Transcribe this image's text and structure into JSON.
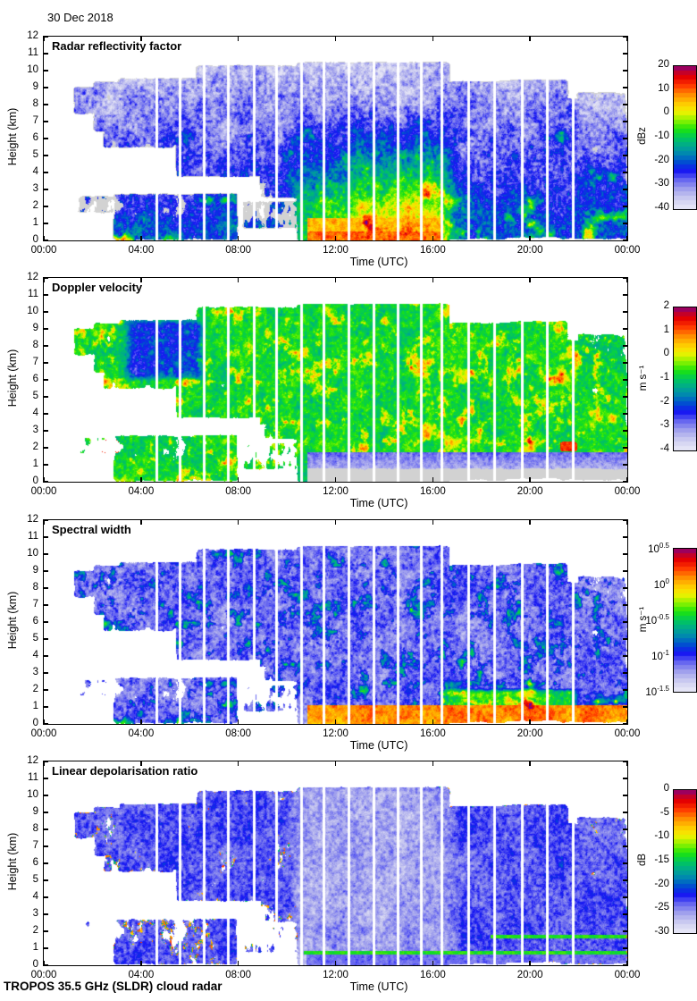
{
  "page": {
    "date": "30 Dec 2018",
    "footer": "TROPOS 35.5 GHz (SLDR) cloud radar",
    "background": "#ffffff"
  },
  "chart_data": {
    "type": "heatmap",
    "description": "Four time-height radar quicklook panels for one day, 00:00-00:00 UTC, 0-12 km height",
    "x_axis": {
      "label": "Time (UTC)",
      "range_hours": [
        0,
        24
      ],
      "ticks": [
        {
          "hour": 0,
          "label": "00:00"
        },
        {
          "hour": 4,
          "label": "04:00"
        },
        {
          "hour": 8,
          "label": "08:00"
        },
        {
          "hour": 12,
          "label": "12:00"
        },
        {
          "hour": 16,
          "label": "16:00"
        },
        {
          "hour": 20,
          "label": "20:00"
        },
        {
          "hour": 24,
          "label": "00:00"
        }
      ]
    },
    "y_axis": {
      "label": "Height (km)",
      "range_km": [
        0,
        12
      ],
      "ticks": [
        0,
        1,
        2,
        3,
        4,
        5,
        6,
        7,
        8,
        9,
        10,
        11,
        12
      ]
    },
    "colormap": {
      "levels": 32,
      "clutter_gray": "#d2d2d2",
      "stops": [
        [
          0.0,
          "#eaeaf8"
        ],
        [
          0.06,
          "#d3d3f2"
        ],
        [
          0.13,
          "#a9a9ec"
        ],
        [
          0.2,
          "#6b6bf0"
        ],
        [
          0.27,
          "#1414f2"
        ],
        [
          0.33,
          "#0050d0"
        ],
        [
          0.38,
          "#0082b4"
        ],
        [
          0.44,
          "#00a890"
        ],
        [
          0.5,
          "#00c85a"
        ],
        [
          0.56,
          "#1ee40c"
        ],
        [
          0.62,
          "#8cf200"
        ],
        [
          0.68,
          "#f2f200"
        ],
        [
          0.74,
          "#ffc800"
        ],
        [
          0.8,
          "#ff8c00"
        ],
        [
          0.86,
          "#ff3c00"
        ],
        [
          0.92,
          "#e60000"
        ],
        [
          0.97,
          "#b4003c"
        ],
        [
          1.0,
          "#820082"
        ]
      ]
    },
    "panels": [
      {
        "id": "reflectivity",
        "title": "Radar reflectivity factor",
        "colorbar": {
          "label": "dBz",
          "min": -40,
          "max": 20,
          "ticks": [
            {
              "v": 20,
              "label": "20"
            },
            {
              "v": 10,
              "label": "10"
            },
            {
              "v": 0,
              "label": "0"
            },
            {
              "v": -10,
              "label": "-10"
            },
            {
              "v": -20,
              "label": "-20"
            },
            {
              "v": -30,
              "label": "-30"
            },
            {
              "v": -40,
              "label": "-40"
            }
          ]
        }
      },
      {
        "id": "velocity",
        "title": "Doppler velocity",
        "colorbar": {
          "label": "m s⁻¹",
          "min": -4,
          "max": 2,
          "ticks": [
            {
              "v": 2,
              "label": "2"
            },
            {
              "v": 1,
              "label": "1"
            },
            {
              "v": 0,
              "label": "0"
            },
            {
              "v": -1,
              "label": "-1"
            },
            {
              "v": -2,
              "label": "-2"
            },
            {
              "v": -3,
              "label": "-3"
            },
            {
              "v": -4,
              "label": "-4"
            }
          ]
        }
      },
      {
        "id": "width",
        "title": "Spectral width",
        "colorbar": {
          "label": "m s⁻¹",
          "min": -1.5,
          "max": 0.5,
          "log10": true,
          "ticks": [
            {
              "v": 0.5,
              "label": "10^0.5"
            },
            {
              "v": 0,
              "label": "10^0"
            },
            {
              "v": -0.5,
              "label": "10^-0.5"
            },
            {
              "v": -1,
              "label": "10^-1"
            },
            {
              "v": -1.5,
              "label": "10^-1.5"
            }
          ]
        }
      },
      {
        "id": "ldr",
        "title": "Linear depolarisation ratio",
        "colorbar": {
          "label": "dB",
          "min": -30,
          "max": 0,
          "ticks": [
            {
              "v": 0,
              "label": "0"
            },
            {
              "v": -5,
              "label": "-5"
            },
            {
              "v": -10,
              "label": "-10"
            },
            {
              "v": -15,
              "label": "-15"
            },
            {
              "v": -20,
              "label": "-20"
            },
            {
              "v": -25,
              "label": "-25"
            },
            {
              "v": -30,
              "label": "-30"
            }
          ]
        }
      }
    ],
    "scene": {
      "stripes_hours": [
        4.6,
        5.55,
        6.55,
        7.55,
        8.6,
        9.55,
        10.55,
        11.5,
        12.5,
        13.55,
        14.55,
        15.5,
        16.35,
        17.45,
        18.5,
        19.65,
        20.7,
        21.75
      ],
      "deep_system": {
        "t": [
          10.7,
          16.4
        ],
        "h": [
          0,
          10.2
        ]
      },
      "melting_layer_km": 0.72,
      "late_band_km": 1.68,
      "regions": [
        {
          "t": [
            1.4,
            3.3
          ],
          "h": [
            7.6,
            8.9
          ],
          "amp": 0.95
        },
        {
          "t": [
            2.2,
            5.6
          ],
          "h": [
            6.6,
            9.2
          ],
          "amp": 1.0
        },
        {
          "t": [
            3.2,
            8.6
          ],
          "h": [
            5.8,
            9.4
          ],
          "amp": 1.0
        },
        {
          "t": [
            2.6,
            5.2
          ],
          "h": [
            5.6,
            6.9
          ],
          "amp": 0.85
        },
        {
          "t": [
            5.6,
            10.6
          ],
          "h": [
            3.9,
            6.6
          ],
          "amp": 0.95
        },
        {
          "t": [
            6.4,
            12.4
          ],
          "h": [
            8.6,
            10.15
          ],
          "amp": 0.95
        },
        {
          "t": [
            8.2,
            12.2
          ],
          "h": [
            5.9,
            9.6
          ],
          "amp": 0.95
        },
        {
          "t": [
            9.0,
            10.8
          ],
          "h": [
            2.6,
            5.0
          ],
          "amp": 0.85
        },
        {
          "t": [
            10.6,
            16.5
          ],
          "h": [
            0.1,
            10.3
          ],
          "amp": 1.25
        },
        {
          "t": [
            16.6,
            18.9
          ],
          "h": [
            0.2,
            9.2
          ],
          "amp": 1.0
        },
        {
          "t": [
            18.9,
            21.4
          ],
          "h": [
            0.3,
            9.3
          ],
          "amp": 1.0
        },
        {
          "t": [
            21.4,
            23.85
          ],
          "h": [
            0.2,
            8.2
          ],
          "amp": 0.95
        },
        {
          "t": [
            3.0,
            7.8
          ],
          "h": [
            0.15,
            2.6
          ],
          "amp": 0.9
        },
        {
          "t": [
            22.1,
            23.8
          ],
          "h": [
            4.3,
            8.6
          ],
          "amp": 0.9
        },
        {
          "t": [
            1.5,
            2.9
          ],
          "h": [
            1.7,
            2.5
          ],
          "amp": 0.75
        },
        {
          "t": [
            8.3,
            10.6
          ],
          "h": [
            0.8,
            2.2
          ],
          "amp": 0.75
        }
      ]
    }
  }
}
